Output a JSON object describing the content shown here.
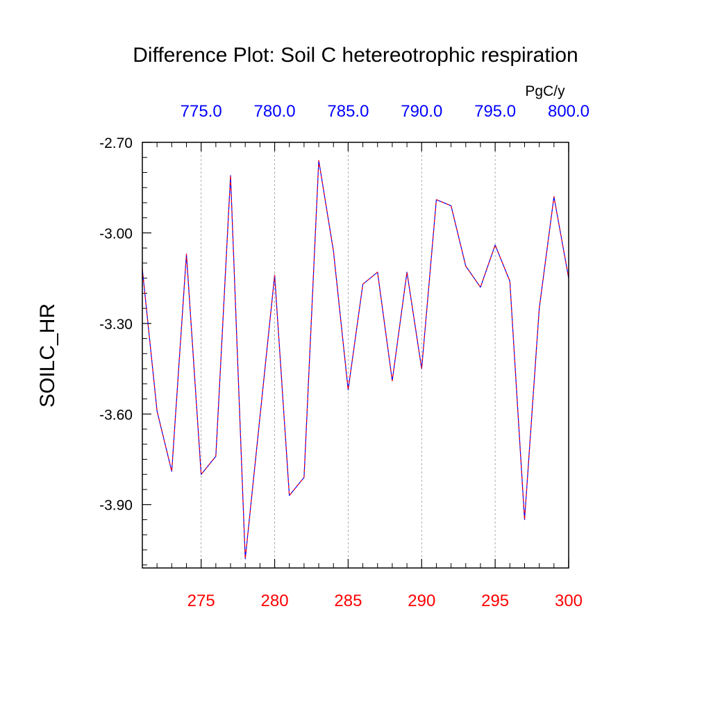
{
  "chart_data": {
    "type": "line",
    "title": "Difference Plot: Soil C hetereotrophic respiration",
    "ylabel": "SOILC_HR",
    "units": "PgC/y",
    "xlim": [
      271,
      300
    ],
    "ylim": [
      -4.11,
      -2.7
    ],
    "yticks": [
      -2.7,
      -3.0,
      -3.3,
      -3.6,
      -3.9
    ],
    "ytick_labels": [
      "-2.70",
      "-3.00",
      "-3.30",
      "-3.60",
      "-3.90"
    ],
    "xticks_bottom": [
      275,
      280,
      285,
      290,
      295,
      300
    ],
    "xtick_labels_bottom": [
      "275",
      "280",
      "285",
      "290",
      "295",
      "300"
    ],
    "xticks_top": [
      275,
      280,
      285,
      290,
      295,
      300
    ],
    "xtick_labels_top": [
      "775.0",
      "780.0",
      "785.0",
      "790.0",
      "795.0",
      "800.0"
    ],
    "grid": "vertical dashed at major x ticks",
    "series": [
      {
        "line_color": "#0000ff",
        "dash_color": "#ff0000",
        "x": [
          271,
          272,
          273,
          274,
          275,
          276,
          277,
          278,
          279,
          280,
          281,
          282,
          283,
          284,
          285,
          286,
          287,
          288,
          289,
          290,
          291,
          292,
          293,
          294,
          295,
          296,
          297,
          298,
          299,
          300
        ],
        "values": [
          -3.12,
          -3.59,
          -3.79,
          -3.07,
          -3.8,
          -3.74,
          -2.81,
          -4.08,
          -3.61,
          -3.14,
          -3.87,
          -3.81,
          -2.76,
          -3.06,
          -3.52,
          -3.17,
          -3.13,
          -3.49,
          -3.13,
          -3.45,
          -2.89,
          -2.91,
          -3.11,
          -3.18,
          -3.04,
          -3.16,
          -3.95,
          -3.25,
          -2.88,
          -3.15
        ]
      }
    ],
    "colors": {
      "bottom_tick_labels": "#ff0000",
      "top_tick_labels": "#0000ff",
      "grid": "#999999",
      "frame": "#000000"
    }
  }
}
